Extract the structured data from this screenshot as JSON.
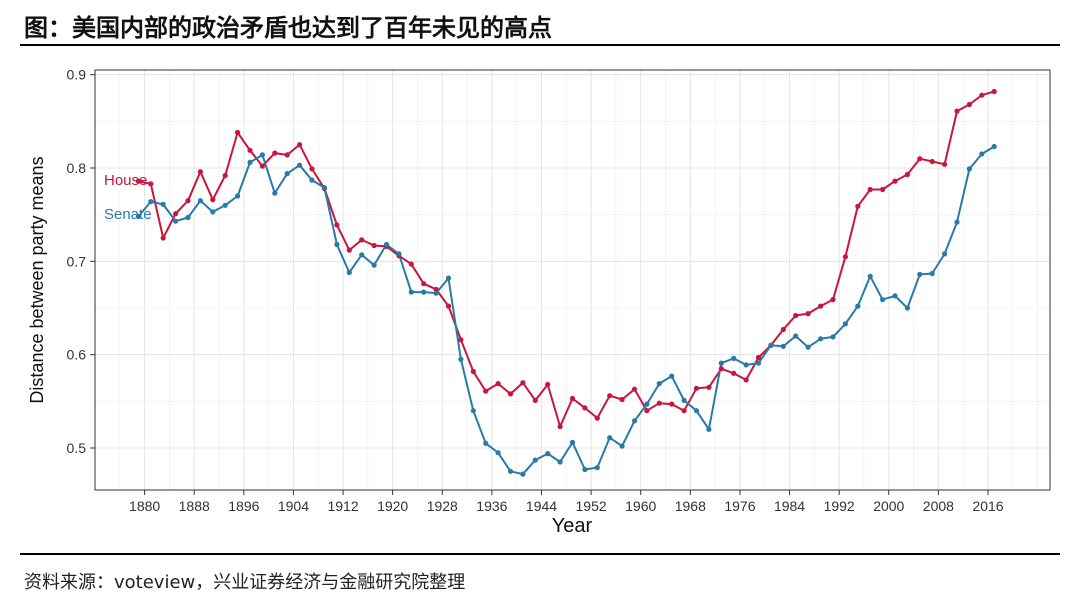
{
  "title": "图：美国内部的政治矛盾也达到了百年未见的高点",
  "source": "资料来源：voteview，兴业证券经济与金融研究院整理",
  "chart_data": {
    "type": "line",
    "xlabel": "Year",
    "ylabel": "Distance between party means",
    "xlim": [
      1872,
      2026
    ],
    "ylim": [
      0.455,
      0.905
    ],
    "x_ticks": [
      1880,
      1888,
      1896,
      1904,
      1912,
      1920,
      1928,
      1936,
      1944,
      1952,
      1960,
      1968,
      1976,
      1984,
      1992,
      2000,
      2008,
      2016
    ],
    "y_ticks": [
      0.5,
      0.6,
      0.7,
      0.8,
      0.9
    ],
    "y_tick_labels": [
      "0.5",
      "0.6",
      "0.7",
      "0.8",
      "0.9"
    ],
    "grid": true,
    "legend": "inline-left",
    "series": [
      {
        "name": "House",
        "color": "#c8163c",
        "x": [
          1879,
          1881,
          1883,
          1885,
          1887,
          1889,
          1891,
          1893,
          1895,
          1897,
          1899,
          1901,
          1903,
          1905,
          1907,
          1909,
          1911,
          1913,
          1915,
          1917,
          1919,
          1921,
          1923,
          1925,
          1927,
          1929,
          1931,
          1933,
          1935,
          1937,
          1939,
          1941,
          1943,
          1945,
          1947,
          1949,
          1951,
          1953,
          1955,
          1957,
          1959,
          1961,
          1963,
          1965,
          1967,
          1969,
          1971,
          1973,
          1975,
          1977,
          1979,
          1981,
          1983,
          1985,
          1987,
          1989,
          1991,
          1993,
          1995,
          1997,
          1999,
          2001,
          2003,
          2005,
          2007,
          2009,
          2011,
          2013,
          2015,
          2017
        ],
        "y": [
          0.786,
          0.783,
          0.725,
          0.751,
          0.765,
          0.796,
          0.766,
          0.792,
          0.838,
          0.819,
          0.802,
          0.816,
          0.814,
          0.825,
          0.799,
          0.778,
          0.739,
          0.712,
          0.723,
          0.717,
          0.716,
          0.706,
          0.697,
          0.676,
          0.67,
          0.652,
          0.616,
          0.582,
          0.561,
          0.569,
          0.558,
          0.57,
          0.551,
          0.568,
          0.523,
          0.553,
          0.543,
          0.532,
          0.556,
          0.552,
          0.563,
          0.54,
          0.548,
          0.547,
          0.54,
          0.564,
          0.565,
          0.585,
          0.58,
          0.573,
          0.597,
          0.61,
          0.627,
          0.642,
          0.644,
          0.652,
          0.659,
          0.705,
          0.759,
          0.777,
          0.777,
          0.786,
          0.793,
          0.81,
          0.807,
          0.804,
          0.861,
          0.868,
          0.878,
          0.882
        ]
      },
      {
        "name": "Senate",
        "color": "#2a7aa8",
        "x": [
          1879,
          1881,
          1883,
          1885,
          1887,
          1889,
          1891,
          1893,
          1895,
          1897,
          1899,
          1901,
          1903,
          1905,
          1907,
          1909,
          1911,
          1913,
          1915,
          1917,
          1919,
          1921,
          1923,
          1925,
          1927,
          1929,
          1931,
          1933,
          1935,
          1937,
          1939,
          1941,
          1943,
          1945,
          1947,
          1949,
          1951,
          1953,
          1955,
          1957,
          1959,
          1961,
          1963,
          1965,
          1967,
          1969,
          1971,
          1973,
          1975,
          1977,
          1979,
          1981,
          1983,
          1985,
          1987,
          1989,
          1991,
          1993,
          1995,
          1997,
          1999,
          2001,
          2003,
          2005,
          2007,
          2009,
          2011,
          2013,
          2015,
          2017
        ],
        "y": [
          0.748,
          0.764,
          0.761,
          0.743,
          0.747,
          0.765,
          0.753,
          0.76,
          0.77,
          0.806,
          0.814,
          0.773,
          0.794,
          0.803,
          0.787,
          0.779,
          0.718,
          0.688,
          0.707,
          0.696,
          0.718,
          0.708,
          0.667,
          0.667,
          0.666,
          0.682,
          0.595,
          0.54,
          0.505,
          0.495,
          0.475,
          0.472,
          0.487,
          0.494,
          0.485,
          0.506,
          0.477,
          0.479,
          0.511,
          0.502,
          0.529,
          0.547,
          0.569,
          0.577,
          0.551,
          0.54,
          0.52,
          0.591,
          0.596,
          0.589,
          0.591,
          0.61,
          0.609,
          0.62,
          0.608,
          0.617,
          0.619,
          0.633,
          0.652,
          0.684,
          0.659,
          0.663,
          0.65,
          0.686,
          0.687,
          0.708,
          0.742,
          0.799,
          0.815,
          0.823
        ]
      }
    ]
  }
}
